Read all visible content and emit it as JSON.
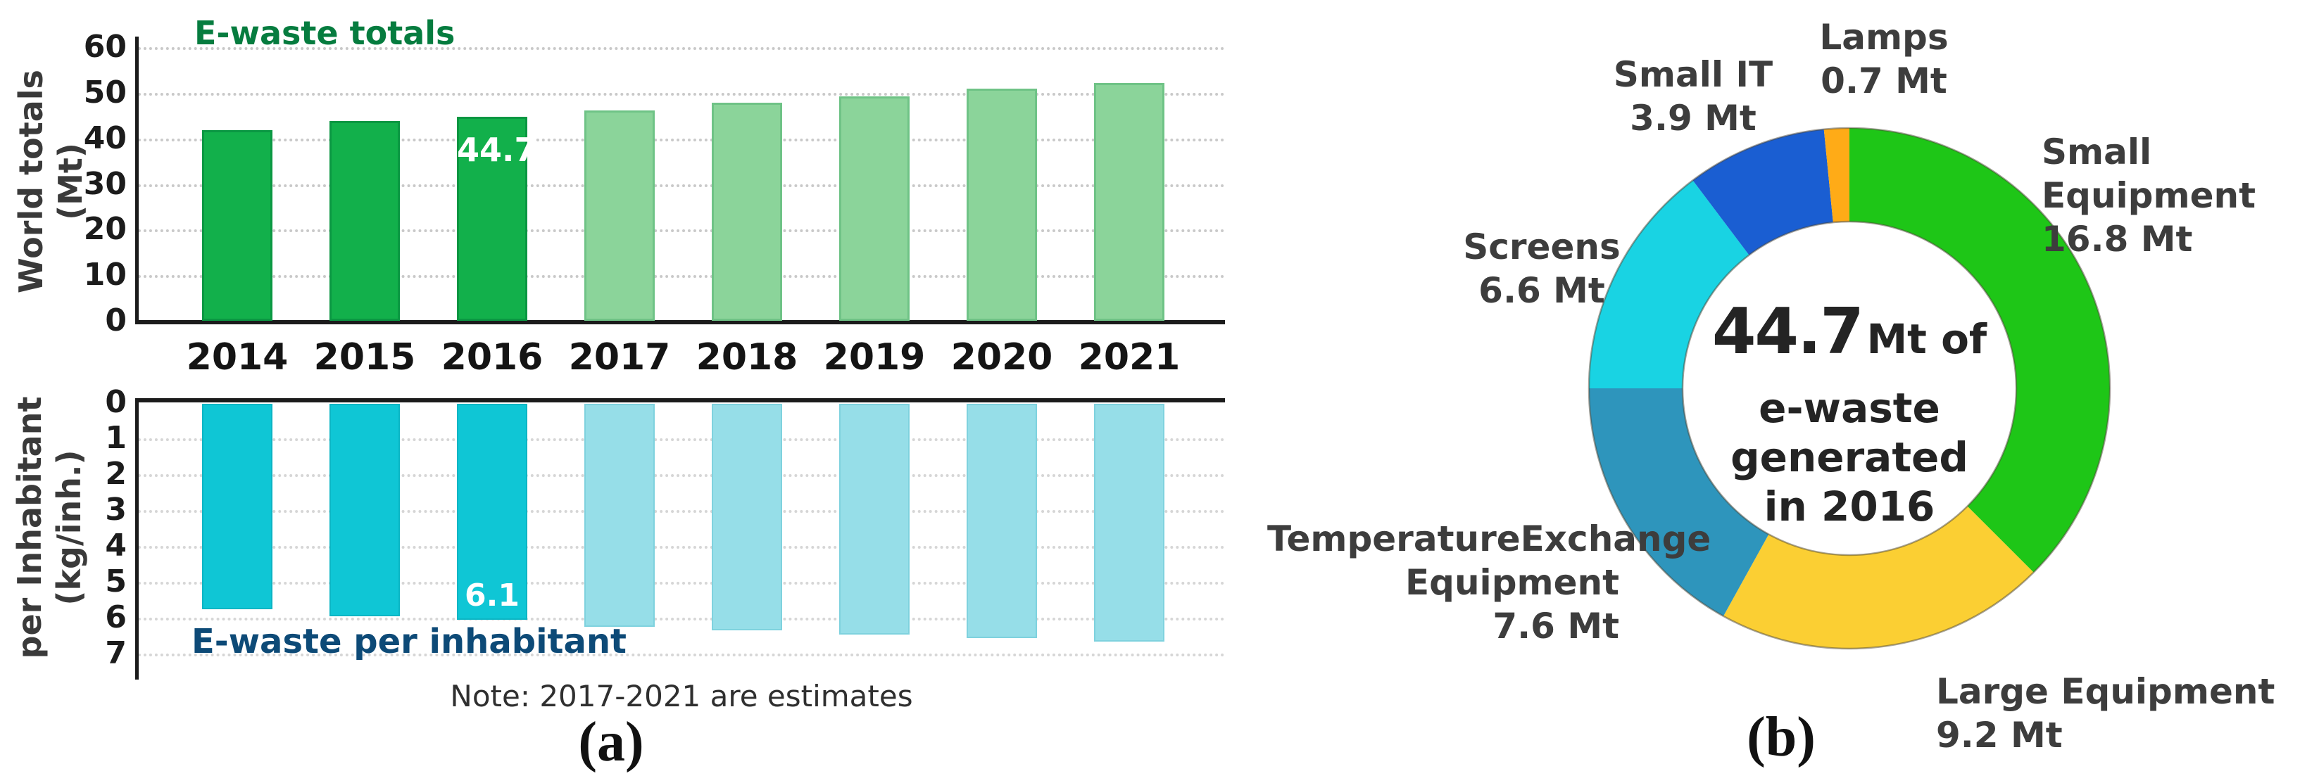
{
  "figure": {
    "panel_a_tag": "(a)",
    "panel_b_tag": "(b)"
  },
  "panel_a": {
    "top_title": "E-waste totals",
    "top_y_axis": [
      "World totals",
      "(Mt)"
    ],
    "bottom_title": "E-waste per inhabitant",
    "bottom_y_axis": [
      "per Inhabitant",
      "(kg/inh.)"
    ],
    "note": "Note: 2017-2021 are estimates",
    "highlight_total": "44.7",
    "highlight_per_capita": "6.1"
  },
  "panel_b": {
    "center": [
      "44.7",
      "Mt of",
      "e-waste",
      "generated",
      "in 2016"
    ],
    "labels": {
      "small_it": [
        "Small IT",
        "3.9 Mt"
      ],
      "lamps": [
        "Lamps",
        "0.7 Mt"
      ],
      "small_equipment": [
        "Small Equipment",
        "16.8 Mt"
      ],
      "screens": [
        "Screens",
        "6.6 Mt"
      ],
      "temperature_exchange": [
        "TemperatureExchange",
        "Equipment",
        "7.6 Mt"
      ],
      "large_equipment": [
        "Large Equipment",
        "9.2 Mt"
      ]
    }
  },
  "chart_data": [
    {
      "type": "bar",
      "title": "E-waste totals",
      "categories": [
        "2014",
        "2015",
        "2016",
        "2017",
        "2018",
        "2019",
        "2020",
        "2021"
      ],
      "values": [
        41.8,
        43.8,
        44.7,
        46.1,
        47.8,
        49.3,
        50.9,
        52.2
      ],
      "labeled_point": {
        "category": "2016",
        "label": "44.7"
      },
      "xlabel": "",
      "ylabel": "World totals (Mt)",
      "ylim": [
        0,
        60
      ],
      "y_ticks": [
        0,
        10,
        20,
        30,
        40,
        50,
        60
      ],
      "grid": "dotted horizontal",
      "estimate_categories": [
        "2017",
        "2018",
        "2019",
        "2020",
        "2021"
      ],
      "solid_color": "#12b04b",
      "estimate_color": "#8bd49a",
      "note": "Note: 2017-2021 are estimates"
    },
    {
      "type": "bar",
      "title": "E-waste per inhabitant",
      "categories": [
        "2014",
        "2015",
        "2016",
        "2017",
        "2018",
        "2019",
        "2020",
        "2021"
      ],
      "values": [
        5.8,
        6.0,
        6.1,
        6.3,
        6.4,
        6.5,
        6.6,
        6.7
      ],
      "labeled_point": {
        "category": "2016",
        "label": "6.1"
      },
      "xlabel": "",
      "ylabel": "per Inhabitant (kg/inh.)",
      "ylim": [
        0,
        7
      ],
      "y_ticks": [
        0,
        1,
        2,
        3,
        4,
        5,
        6,
        7
      ],
      "inverted_axis": true,
      "grid": "dotted horizontal",
      "estimate_categories": [
        "2017",
        "2018",
        "2019",
        "2020",
        "2021"
      ],
      "solid_color": "#0fc6d5",
      "estimate_color": "#96dee8"
    },
    {
      "type": "pie",
      "subtype": "donut",
      "center_label": "44.7 Mt of e-waste generated in 2016",
      "units": "Mt",
      "direction": "clockwise",
      "start_angle_deg": 0,
      "segments": [
        {
          "label": "Small Equipment",
          "value": 16.8,
          "display": "16.8 Mt",
          "color": "#1ec617"
        },
        {
          "label": "Large Equipment",
          "value": 9.2,
          "display": "9.2 Mt",
          "color": "#fbcf33"
        },
        {
          "label": "TemperatureExchange Equipment",
          "value": 7.6,
          "display": "7.6 Mt",
          "color": "#2e95bc"
        },
        {
          "label": "Screens",
          "value": 6.6,
          "display": "6.6 Mt",
          "color": "#19d3e3"
        },
        {
          "label": "Small IT",
          "value": 3.9,
          "display": "3.9 Mt",
          "color": "#1a5ed2"
        },
        {
          "label": "Lamps",
          "value": 0.7,
          "display": "0.7 Mt",
          "color": "#ffab17"
        }
      ]
    }
  ]
}
